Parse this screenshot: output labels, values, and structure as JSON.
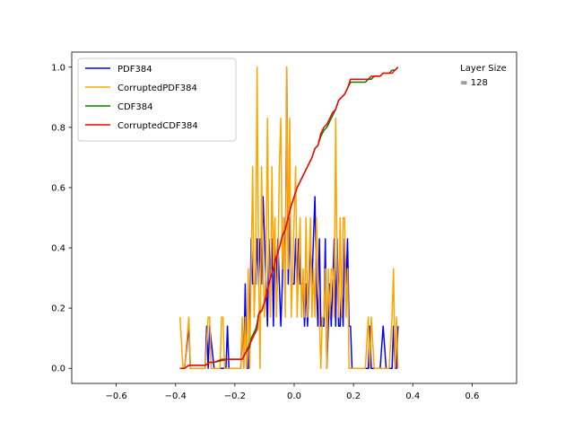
{
  "chart_data": {
    "type": "line",
    "title": "",
    "xlabel": "",
    "ylabel": "",
    "xlim": [
      -0.75,
      0.75
    ],
    "ylim": [
      -0.05,
      1.05
    ],
    "xticks": [
      -0.6,
      -0.4,
      -0.2,
      0.0,
      0.2,
      0.4,
      0.6
    ],
    "xtick_labels": [
      "−0.6",
      "−0.4",
      "−0.2",
      "0.0",
      "0.2",
      "0.4",
      "0.6"
    ],
    "yticks": [
      0.0,
      0.2,
      0.4,
      0.6,
      0.8,
      1.0
    ],
    "ytick_labels": [
      "0.0",
      "0.2",
      "0.4",
      "0.6",
      "0.8",
      "1.0"
    ],
    "grid": false,
    "legend_position": "top-left",
    "annotation": {
      "lines": [
        "Layer Size",
        "= 128"
      ],
      "x": 0.56,
      "y": 1.0
    },
    "series": [
      {
        "name": "PDF384",
        "color": "#0000ff",
        "x": [
          -0.385,
          -0.37,
          -0.355,
          -0.35,
          -0.345,
          -0.32,
          -0.3,
          -0.295,
          -0.29,
          -0.285,
          -0.27,
          -0.25,
          -0.23,
          -0.225,
          -0.22,
          -0.2,
          -0.18,
          -0.175,
          -0.17,
          -0.165,
          -0.16,
          -0.155,
          -0.15,
          -0.145,
          -0.14,
          -0.135,
          -0.13,
          -0.125,
          -0.12,
          -0.115,
          -0.11,
          -0.105,
          -0.1,
          -0.095,
          -0.09,
          -0.085,
          -0.08,
          -0.075,
          -0.07,
          -0.065,
          -0.06,
          -0.055,
          -0.05,
          -0.045,
          -0.04,
          -0.035,
          -0.03,
          -0.025,
          -0.02,
          -0.015,
          -0.01,
          -0.005,
          0.0,
          0.005,
          0.01,
          0.015,
          0.02,
          0.025,
          0.03,
          0.035,
          0.04,
          0.045,
          0.05,
          0.055,
          0.06,
          0.065,
          0.07,
          0.075,
          0.08,
          0.085,
          0.09,
          0.095,
          0.1,
          0.105,
          0.11,
          0.115,
          0.12,
          0.125,
          0.13,
          0.135,
          0.14,
          0.145,
          0.15,
          0.155,
          0.16,
          0.165,
          0.17,
          0.175,
          0.18,
          0.185,
          0.19,
          0.195,
          0.2,
          0.22,
          0.24,
          0.25,
          0.255,
          0.26,
          0.27,
          0.29,
          0.3,
          0.31,
          0.32,
          0.33,
          0.335,
          0.34,
          0.345,
          0.35
        ],
        "y": [
          0.0,
          0.0,
          0.14,
          0.0,
          0.0,
          0.0,
          0.0,
          0.14,
          0.0,
          0.14,
          0.0,
          0.0,
          0.0,
          0.14,
          0.0,
          0.0,
          0.0,
          0.14,
          0.0,
          0.28,
          0.0,
          0.0,
          0.14,
          0.43,
          0.28,
          0.28,
          0.28,
          0.43,
          0.28,
          0.43,
          0.28,
          0.57,
          0.43,
          0.28,
          0.14,
          0.43,
          0.28,
          0.43,
          0.14,
          0.43,
          0.28,
          0.43,
          0.28,
          0.14,
          0.28,
          0.5,
          0.28,
          1.0,
          0.28,
          0.5,
          0.28,
          0.28,
          0.28,
          0.43,
          0.28,
          0.43,
          0.28,
          0.28,
          0.28,
          0.14,
          0.28,
          0.14,
          0.28,
          0.43,
          0.28,
          0.43,
          0.57,
          0.28,
          0.14,
          0.43,
          0.14,
          0.14,
          0.14,
          0.43,
          0.0,
          0.14,
          0.28,
          0.14,
          0.28,
          0.43,
          0.14,
          0.43,
          0.14,
          0.14,
          0.28,
          0.14,
          0.43,
          0.28,
          0.43,
          0.14,
          0.14,
          0.0,
          0.0,
          0.0,
          0.0,
          0.0,
          0.14,
          0.0,
          0.0,
          0.0,
          0.14,
          0.0,
          0.0,
          0.0,
          0.14,
          0.0,
          0.0,
          0.14
        ]
      },
      {
        "name": "CorruptedPDF384",
        "color": "#ffa500",
        "x": [
          -0.385,
          -0.375,
          -0.37,
          -0.355,
          -0.35,
          -0.345,
          -0.33,
          -0.3,
          -0.29,
          -0.285,
          -0.28,
          -0.27,
          -0.25,
          -0.245,
          -0.24,
          -0.235,
          -0.22,
          -0.2,
          -0.18,
          -0.175,
          -0.17,
          -0.165,
          -0.16,
          -0.155,
          -0.15,
          -0.145,
          -0.14,
          -0.135,
          -0.13,
          -0.125,
          -0.12,
          -0.115,
          -0.11,
          -0.105,
          -0.1,
          -0.095,
          -0.09,
          -0.085,
          -0.08,
          -0.075,
          -0.07,
          -0.065,
          -0.06,
          -0.055,
          -0.05,
          -0.045,
          -0.04,
          -0.035,
          -0.03,
          -0.025,
          -0.02,
          -0.015,
          -0.01,
          -0.005,
          0.0,
          0.005,
          0.01,
          0.015,
          0.02,
          0.025,
          0.03,
          0.035,
          0.04,
          0.045,
          0.05,
          0.055,
          0.06,
          0.065,
          0.07,
          0.075,
          0.08,
          0.085,
          0.09,
          0.095,
          0.1,
          0.105,
          0.11,
          0.115,
          0.12,
          0.125,
          0.13,
          0.135,
          0.14,
          0.145,
          0.15,
          0.155,
          0.16,
          0.165,
          0.17,
          0.175,
          0.18,
          0.185,
          0.19,
          0.195,
          0.2,
          0.22,
          0.24,
          0.25,
          0.255,
          0.26,
          0.27,
          0.29,
          0.31,
          0.32,
          0.33,
          0.335,
          0.34,
          0.345,
          0.35
        ],
        "y": [
          0.17,
          0.0,
          0.0,
          0.17,
          0.0,
          0.0,
          0.0,
          0.0,
          0.17,
          0.17,
          0.0,
          0.0,
          0.0,
          0.17,
          0.17,
          0.0,
          0.0,
          0.0,
          0.0,
          0.17,
          0.0,
          0.17,
          0.0,
          0.33,
          0.0,
          0.33,
          0.67,
          0.17,
          0.33,
          1.0,
          0.33,
          0.0,
          0.67,
          0.33,
          0.17,
          0.33,
          0.83,
          0.33,
          0.17,
          0.67,
          0.33,
          0.5,
          0.17,
          0.33,
          0.67,
          0.83,
          0.33,
          0.5,
          0.17,
          1.0,
          0.33,
          0.83,
          0.17,
          0.33,
          0.5,
          0.67,
          0.17,
          0.33,
          0.5,
          0.17,
          0.33,
          0.17,
          0.5,
          0.17,
          0.33,
          0.5,
          0.17,
          0.33,
          0.17,
          0.5,
          0.33,
          0.17,
          0.0,
          0.17,
          0.17,
          0.33,
          0.0,
          0.33,
          0.17,
          0.33,
          0.33,
          0.17,
          0.83,
          0.33,
          0.17,
          0.5,
          0.17,
          0.5,
          0.5,
          0.17,
          0.33,
          0.0,
          0.0,
          0.0,
          0.0,
          0.0,
          0.0,
          0.17,
          0.0,
          0.17,
          0.0,
          0.0,
          0.0,
          0.0,
          0.17,
          0.33,
          0.0,
          0.17,
          0.0
        ]
      },
      {
        "name": "CDF384",
        "color": "#008000",
        "x": [
          -0.385,
          -0.37,
          -0.355,
          -0.3,
          -0.285,
          -0.27,
          -0.225,
          -0.175,
          -0.17,
          -0.165,
          -0.15,
          -0.145,
          -0.14,
          -0.13,
          -0.125,
          -0.12,
          -0.11,
          -0.1,
          -0.09,
          -0.08,
          -0.07,
          -0.06,
          -0.05,
          -0.04,
          -0.03,
          -0.02,
          -0.01,
          0.0,
          0.01,
          0.02,
          0.03,
          0.04,
          0.05,
          0.06,
          0.07,
          0.08,
          0.09,
          0.1,
          0.11,
          0.12,
          0.13,
          0.14,
          0.15,
          0.16,
          0.17,
          0.18,
          0.19,
          0.2,
          0.22,
          0.24,
          0.25,
          0.26,
          0.27,
          0.29,
          0.3,
          0.31,
          0.32,
          0.33,
          0.34,
          0.35
        ],
        "y": [
          0.0,
          0.0,
          0.01,
          0.01,
          0.02,
          0.02,
          0.03,
          0.03,
          0.04,
          0.05,
          0.07,
          0.1,
          0.11,
          0.13,
          0.15,
          0.18,
          0.19,
          0.22,
          0.26,
          0.3,
          0.33,
          0.37,
          0.4,
          0.44,
          0.46,
          0.5,
          0.54,
          0.57,
          0.6,
          0.62,
          0.64,
          0.66,
          0.68,
          0.7,
          0.73,
          0.74,
          0.77,
          0.79,
          0.8,
          0.82,
          0.84,
          0.86,
          0.89,
          0.9,
          0.91,
          0.93,
          0.95,
          0.95,
          0.95,
          0.95,
          0.96,
          0.96,
          0.97,
          0.97,
          0.98,
          0.98,
          0.98,
          0.99,
          0.99,
          1.0
        ]
      },
      {
        "name": "CorruptedCDF384",
        "color": "#ff0000",
        "x": [
          -0.385,
          -0.37,
          -0.355,
          -0.3,
          -0.285,
          -0.27,
          -0.245,
          -0.175,
          -0.165,
          -0.155,
          -0.145,
          -0.135,
          -0.125,
          -0.12,
          -0.115,
          -0.11,
          -0.1,
          -0.09,
          -0.08,
          -0.07,
          -0.06,
          -0.05,
          -0.04,
          -0.03,
          -0.02,
          -0.01,
          0.0,
          0.01,
          0.02,
          0.03,
          0.04,
          0.05,
          0.06,
          0.07,
          0.08,
          0.09,
          0.1,
          0.11,
          0.12,
          0.13,
          0.14,
          0.15,
          0.16,
          0.17,
          0.18,
          0.19,
          0.2,
          0.22,
          0.24,
          0.25,
          0.26,
          0.27,
          0.29,
          0.3,
          0.31,
          0.32,
          0.33,
          0.34,
          0.35
        ],
        "y": [
          0.0,
          0.0,
          0.01,
          0.01,
          0.02,
          0.02,
          0.03,
          0.03,
          0.05,
          0.07,
          0.09,
          0.11,
          0.13,
          0.18,
          0.19,
          0.19,
          0.22,
          0.26,
          0.3,
          0.33,
          0.37,
          0.4,
          0.44,
          0.46,
          0.5,
          0.54,
          0.57,
          0.6,
          0.62,
          0.64,
          0.66,
          0.68,
          0.7,
          0.73,
          0.74,
          0.78,
          0.8,
          0.81,
          0.83,
          0.85,
          0.86,
          0.89,
          0.9,
          0.91,
          0.93,
          0.96,
          0.96,
          0.96,
          0.96,
          0.96,
          0.97,
          0.97,
          0.97,
          0.98,
          0.98,
          0.98,
          0.98,
          0.99,
          1.0
        ]
      }
    ]
  }
}
